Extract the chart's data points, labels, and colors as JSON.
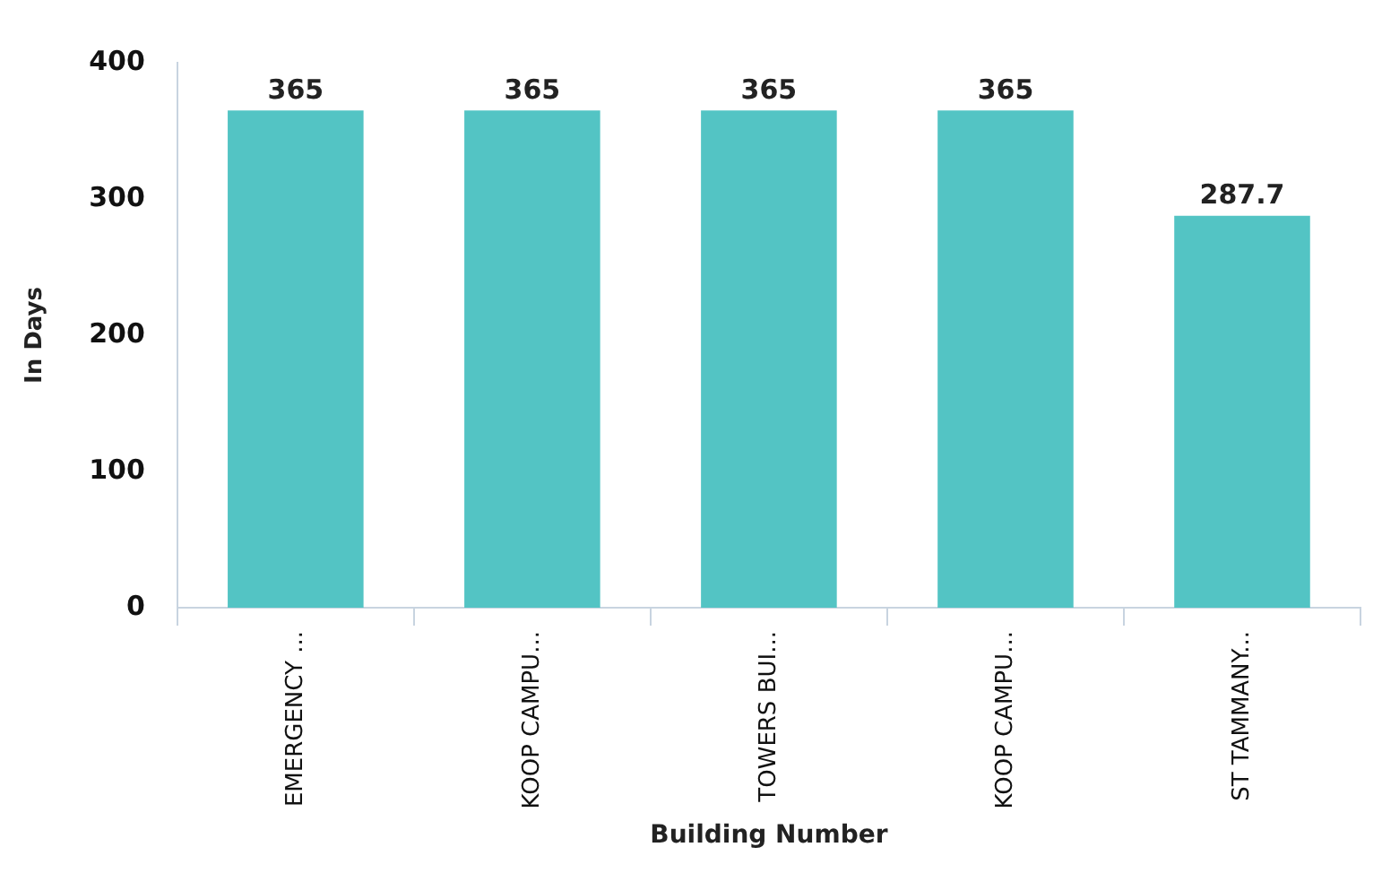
{
  "chart_data": {
    "type": "bar",
    "xlabel": "Building Number",
    "ylabel": "In Days",
    "categories": [
      "EMERGENCY ...",
      "KOOP CAMPU...",
      "TOWERS BUI...",
      "KOOP CAMPU...",
      "ST TAMMANY..."
    ],
    "values": [
      365,
      365,
      365,
      365,
      287.7
    ],
    "color": "#53c4c4",
    "ylim": [
      0,
      400
    ],
    "yticks": [
      0,
      100,
      200,
      300,
      400
    ],
    "grid": false,
    "data_labels": true,
    "legend": false
  }
}
